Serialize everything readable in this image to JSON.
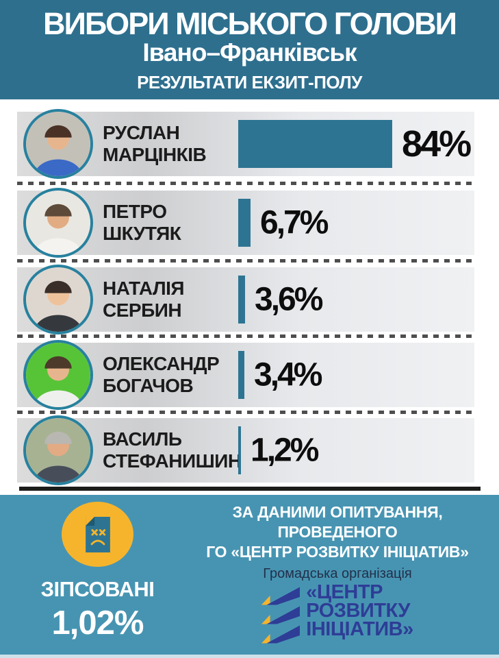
{
  "header": {
    "title": "ВИБОРИ МІСЬКОГО ГОЛОВИ",
    "subtitle": "Івано–Франківськ",
    "banner": "РЕЗУЛЬТАТИ ЕКЗИТ-ПОЛУ"
  },
  "chart_data": {
    "type": "bar",
    "orientation": "horizontal",
    "title": "ВИБОРИ МІСЬКОГО ГОЛОВИ Івано–Франківськ",
    "subtitle": "РЕЗУЛЬТАТИ ЕКЗИТ-ПОЛУ",
    "categories": [
      "РУСЛАН МАРЦІНКІВ",
      "ПЕТРО ШКУТЯК",
      "НАТАЛІЯ СЕРБИН",
      "ОЛЕКСАНДР БОГАЧОВ",
      "ВАСИЛЬ СТЕФАНИШИН"
    ],
    "values": [
      84,
      6.7,
      3.6,
      3.4,
      1.2
    ],
    "value_labels": [
      "84%",
      "6,7%",
      "3,6%",
      "3,4%",
      "1,2%"
    ],
    "xlim": [
      0,
      100
    ],
    "grid": false,
    "legend": false,
    "bar_color": "#2d7493",
    "spoiled": {
      "label": "ЗІПСОВАНІ",
      "value": 1.02,
      "value_label": "1,02%"
    }
  },
  "candidates": [
    {
      "first_name": "РУСЛАН",
      "last_name": "МАРЦІНКІВ",
      "value": 84,
      "label": "84%",
      "photo": {
        "bg": "#c3c0b8",
        "hair": "#4a3226",
        "skin": "#e7b58d",
        "shirt": "#3b69c6"
      }
    },
    {
      "first_name": "ПЕТРО",
      "last_name": "ШКУТЯК",
      "value": 6.7,
      "label": "6,7%",
      "photo": {
        "bg": "#e9e7e1",
        "hair": "#5d4a38",
        "skin": "#e2ac83",
        "shirt": "#f4f3ef"
      }
    },
    {
      "first_name": "НАТАЛІЯ",
      "last_name": "СЕРБИН",
      "value": 3.6,
      "label": "3,6%",
      "photo": {
        "bg": "#ded7cf",
        "hair": "#3a2f28",
        "skin": "#eec39c",
        "shirt": "#35393e"
      }
    },
    {
      "first_name": "ОЛЕКСАНДР",
      "last_name": "БОГАЧОВ",
      "value": 3.4,
      "label": "3,4%",
      "photo": {
        "bg": "#57c438",
        "hair": "#4d3a2a",
        "skin": "#e7b58d",
        "shirt": "#eef0ee"
      }
    },
    {
      "first_name": "ВАСИЛЬ",
      "last_name": "СТЕФАНИШИН",
      "value": 1.2,
      "label": "1,2%",
      "photo": {
        "bg": "#a7b293",
        "hair": "#b9b7b2",
        "skin": "#e3ab84",
        "shirt": "#474e5a"
      }
    }
  ],
  "footer": {
    "source_lines": [
      "ЗА ДАНИМИ ОПИТУВАННЯ,",
      "ПРОВЕДЕНОГО",
      "ГО «ЦЕНТР РОЗВИТКУ ІНІЦІАТИВ»"
    ],
    "spoiled_label": "ЗІПСОВАНІ",
    "spoiled_value": "1,02%",
    "org_type": "Громадська організація",
    "org_name_lines": [
      "«ЦЕНТР",
      "РОЗВИТКУ",
      "ІНІЦІАТИВ»"
    ]
  },
  "colors": {
    "header_bg": "#2e6f8e",
    "footer_bg": "#4794b2",
    "bar": "#2d7493",
    "avatar_ring": "#27819e",
    "accent_yellow": "#f6b42c",
    "logo_blue": "#2e3d96",
    "org_text_dark": "#22304a",
    "name_text": "#1b1b1b",
    "percent_text": "#0d0d0d",
    "separator_dot": "#4e4e4e",
    "divider_dark": "#1c1c1a"
  }
}
